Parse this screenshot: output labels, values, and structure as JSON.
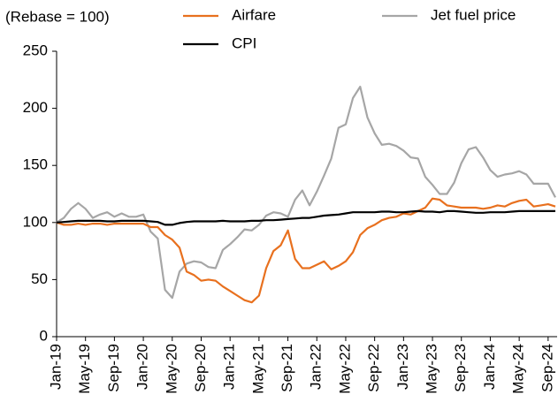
{
  "chart_data": {
    "type": "line",
    "y_label": "(Rebase = 100)",
    "categories": [
      "Jan-19",
      null,
      null,
      null,
      "May-19",
      null,
      null,
      null,
      "Sep-19",
      null,
      null,
      null,
      "Jan-20",
      null,
      null,
      null,
      "May-20",
      null,
      null,
      null,
      "Sep-20",
      null,
      null,
      null,
      "Jan-21",
      null,
      null,
      null,
      "May-21",
      null,
      null,
      null,
      "Sep-21",
      null,
      null,
      null,
      "Jan-22",
      null,
      null,
      null,
      "May-22",
      null,
      null,
      null,
      "Sep-22",
      null,
      null,
      null,
      "Jan-23",
      null,
      null,
      null,
      "May-23",
      null,
      null,
      null,
      "Sep-23",
      null,
      null,
      null,
      "Jan-24",
      null,
      null,
      null,
      "May-24",
      null,
      null,
      null,
      "Sep-24",
      null
    ],
    "series": [
      {
        "name": "Airfare",
        "color": "#e8701e",
        "values": [
          100,
          98,
          98,
          99,
          98,
          99,
          99,
          98,
          99,
          99,
          99,
          99,
          99,
          96,
          96,
          89,
          85,
          78,
          57,
          54,
          49,
          50,
          49,
          44,
          40,
          36,
          32,
          30,
          36,
          60,
          75,
          80,
          93,
          68,
          60,
          60,
          63,
          66,
          59,
          62,
          66,
          74,
          89,
          95,
          98,
          102,
          104,
          105,
          108,
          107,
          110,
          113,
          121,
          120,
          115,
          114,
          113,
          113,
          113,
          112,
          113,
          115,
          114,
          117,
          119,
          120,
          114,
          115,
          116,
          114
        ]
      },
      {
        "name": "Jet fuel price",
        "color": "#a6a6a6",
        "values": [
          100,
          104,
          112,
          117,
          112,
          104,
          107,
          109,
          105,
          108,
          105,
          105,
          107,
          92,
          86,
          41,
          34,
          57,
          64,
          66,
          65,
          61,
          60,
          76,
          81,
          87,
          94,
          93,
          98,
          106,
          109,
          108,
          105,
          120,
          128,
          115,
          127,
          141,
          156,
          183,
          186,
          209,
          219,
          192,
          178,
          168,
          169,
          167,
          163,
          157,
          156,
          140,
          133,
          125,
          125,
          135,
          152,
          164,
          166,
          157,
          146,
          140,
          142,
          143,
          145,
          142,
          134,
          134,
          134,
          122
        ]
      },
      {
        "name": "CPI",
        "color": "#000000",
        "values": [
          100,
          100.5,
          101,
          101.5,
          101.5,
          101.5,
          101.5,
          101,
          101,
          101.5,
          101.5,
          101.5,
          101.5,
          101,
          100.5,
          98,
          98,
          99.5,
          100.5,
          101,
          101,
          101,
          101,
          101.5,
          101,
          101,
          101,
          101.5,
          101.5,
          102,
          102,
          102.5,
          103,
          103.5,
          104,
          104,
          105,
          106,
          106.5,
          107,
          108,
          109,
          109,
          109,
          109,
          109.5,
          109.5,
          109,
          109,
          109.5,
          110,
          109.5,
          109.5,
          109,
          110,
          110,
          109.5,
          109,
          108.5,
          108.5,
          109,
          109,
          109,
          109.5,
          110,
          110,
          110,
          110,
          110,
          110
        ]
      }
    ],
    "ylim": [
      0,
      250
    ],
    "yticks": [
      0,
      50,
      100,
      150,
      200,
      250
    ]
  }
}
